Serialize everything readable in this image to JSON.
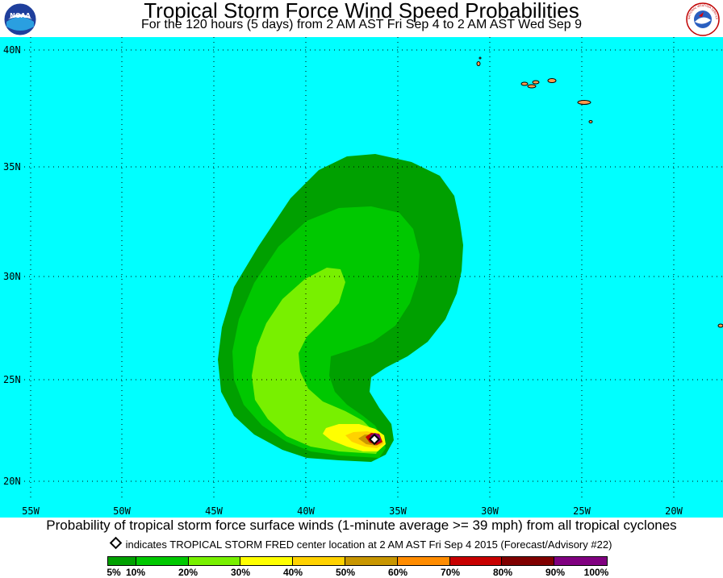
{
  "header": {
    "title": "Tropical Storm Force Wind Speed Probabilities",
    "subtitle": "For the 120 hours (5 days) from 2 AM AST Fri Sep 4 to 2 AM AST Wed Sep 9"
  },
  "logos": {
    "left": {
      "text": "NOAA",
      "icon": "noaa-logo-icon"
    },
    "right": {
      "text": "NATIONAL WEATHER SERVICE",
      "icon": "nws-logo-icon"
    }
  },
  "map": {
    "ocean_color": "#00ffff",
    "lat_labels": [
      "40N",
      "35N",
      "30N",
      "25N",
      "20N"
    ],
    "lon_labels": [
      "55W",
      "50W",
      "45W",
      "40W",
      "35W",
      "30W",
      "25W",
      "20W"
    ],
    "storm_center": {
      "lat": 22.0,
      "lon": -36.3
    }
  },
  "caption": "Probability of tropical storm force surface winds (1-minute average >= 39 mph) from all tropical cyclones",
  "marker_note": "indicates TROPICAL STORM FRED center location at 2 AM AST Fri Sep 4 2015 (Forecast/Advisory #22)",
  "legend": {
    "colors": [
      "#00a000",
      "#00c800",
      "#78f000",
      "#ffff00",
      "#ffd200",
      "#c89600",
      "#ff8c00",
      "#c80000",
      "#800000",
      "#800080"
    ],
    "ticks": [
      "5%",
      "10%",
      "20%",
      "30%",
      "40%",
      "50%",
      "60%",
      "70%",
      "80%",
      "90%",
      "100%"
    ]
  }
}
